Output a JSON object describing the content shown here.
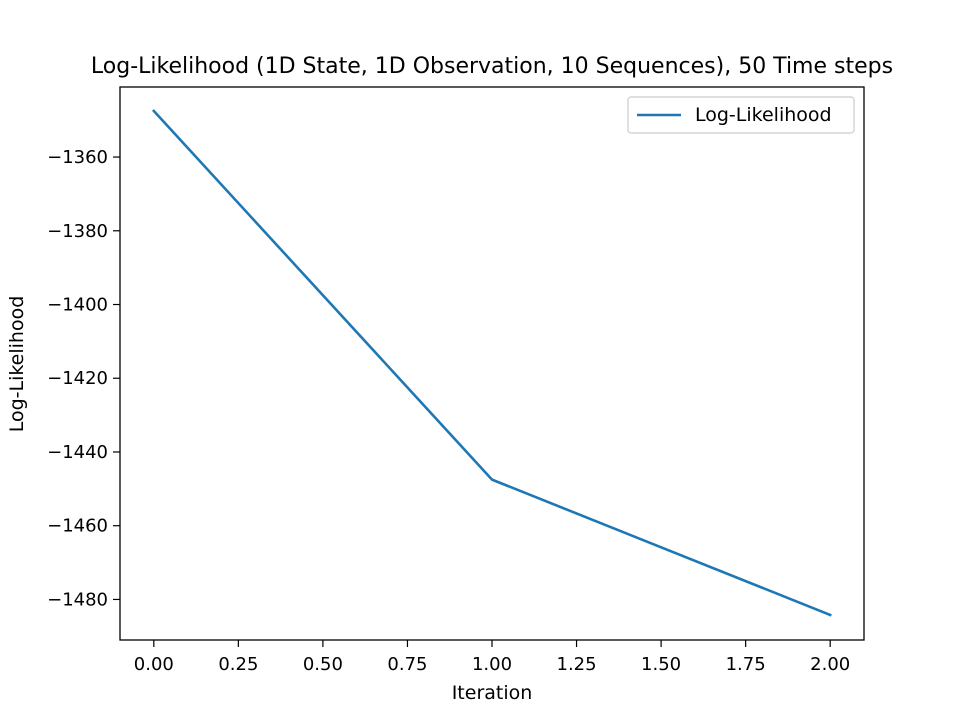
{
  "chart_data": {
    "type": "line",
    "title": "Log-Likelihood (1D State, 1D Observation, 10 Sequences), 50 Time steps",
    "xlabel": "Iteration",
    "ylabel": "Log-Likelihood",
    "xlim": [
      -0.1,
      2.1
    ],
    "ylim": [
      -1491,
      -1341
    ],
    "xticks": [
      0.0,
      0.25,
      0.5,
      0.75,
      1.0,
      1.25,
      1.5,
      1.75,
      2.0
    ],
    "xtick_labels": [
      "0.00",
      "0.25",
      "0.50",
      "0.75",
      "1.00",
      "1.25",
      "1.50",
      "1.75",
      "2.00"
    ],
    "yticks": [
      -1360,
      -1380,
      -1400,
      -1420,
      -1440,
      -1460,
      -1480
    ],
    "ytick_labels": [
      "−1360",
      "−1380",
      "−1400",
      "−1420",
      "−1440",
      "−1460",
      "−1480"
    ],
    "grid": false,
    "legend_position": "top-right",
    "series": [
      {
        "name": "Log-Likelihood",
        "color": "#1f77b4",
        "x": [
          0,
          1,
          2
        ],
        "y": [
          -1347.5,
          -1447.5,
          -1484.2
        ]
      }
    ]
  }
}
